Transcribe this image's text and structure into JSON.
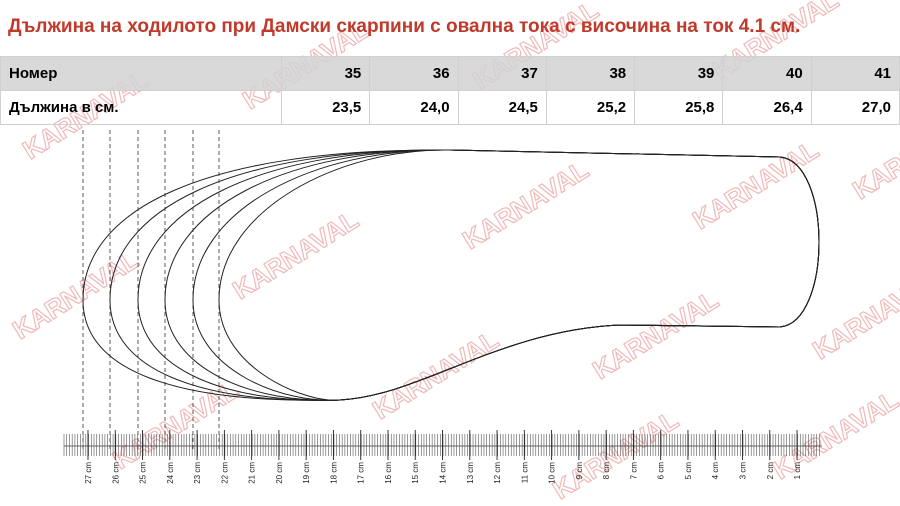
{
  "title": "Дължина на ходилото при Дамски скарпини с овална тока с височина на ток 4.1 см.",
  "table": {
    "header": [
      "Номер",
      "35",
      "36",
      "37",
      "38",
      "39",
      "40",
      "41"
    ],
    "rows": [
      [
        "Дължина в см.",
        "23,5",
        "24,0",
        "24,5",
        "25,2",
        "25,8",
        "26,4",
        "27,0"
      ]
    ]
  },
  "ruler": {
    "labels": [
      "27 cm",
      "26 cm",
      "25 cm",
      "24 cm",
      "23 cm",
      "22 cm",
      "21 cm",
      "20 cm",
      "19 cm",
      "18 cm",
      "17 cm",
      "16 cm",
      "15 cm",
      "14 cm",
      "13 cm",
      "12 cm",
      "11 cm",
      "10 cm",
      "9 cm",
      "8 cm",
      "7 cm",
      "6 cm",
      "5 cm",
      "4 cm",
      "3 cm",
      "2 cm",
      "1 cm"
    ]
  },
  "watermark": "KARNAVAL"
}
